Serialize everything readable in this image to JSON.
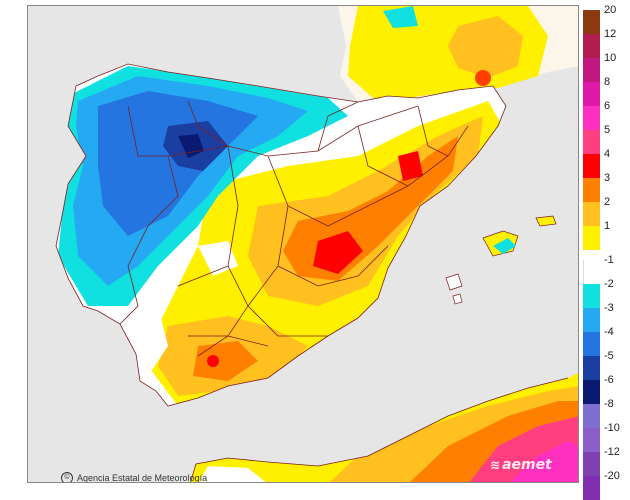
{
  "map": {
    "credit": "Agencia Estatal de Meteorología",
    "brand": "aemet",
    "colors": {
      "sea": "#e6e6e6",
      "land_outside": "#f7f2e6",
      "no_anomaly": "#ffffff",
      "borders": "#7a1f1f"
    }
  },
  "legend": {
    "items": [
      {
        "label": "20",
        "color": "#8b3a0f"
      },
      {
        "label": "12",
        "color": "#b01e4f"
      },
      {
        "label": "10",
        "color": "#c0187e"
      },
      {
        "label": "8",
        "color": "#e01aa8"
      },
      {
        "label": "6",
        "color": "#ff2fbf"
      },
      {
        "label": "5",
        "color": "#ff3f7f"
      },
      {
        "label": "4",
        "color": "#ff0000"
      },
      {
        "label": "3",
        "color": "#ff8000"
      },
      {
        "label": "2",
        "color": "#ffc020"
      },
      {
        "label": "1",
        "color": "#fff000"
      },
      {
        "label": "-1",
        "color": "#ffffff"
      },
      {
        "label": "-2",
        "color": "#10e0e0"
      },
      {
        "label": "-3",
        "color": "#25a9f2"
      },
      {
        "label": "-4",
        "color": "#2575e0"
      },
      {
        "label": "-5",
        "color": "#1a3fa0"
      },
      {
        "label": "-6",
        "color": "#0a1a70"
      },
      {
        "label": "-8",
        "color": "#7f6fd0"
      },
      {
        "label": "-10",
        "color": "#8a5fc8"
      },
      {
        "label": "-12",
        "color": "#7f40b0"
      },
      {
        "label": "-20",
        "color": "#7f2fb0"
      }
    ]
  }
}
